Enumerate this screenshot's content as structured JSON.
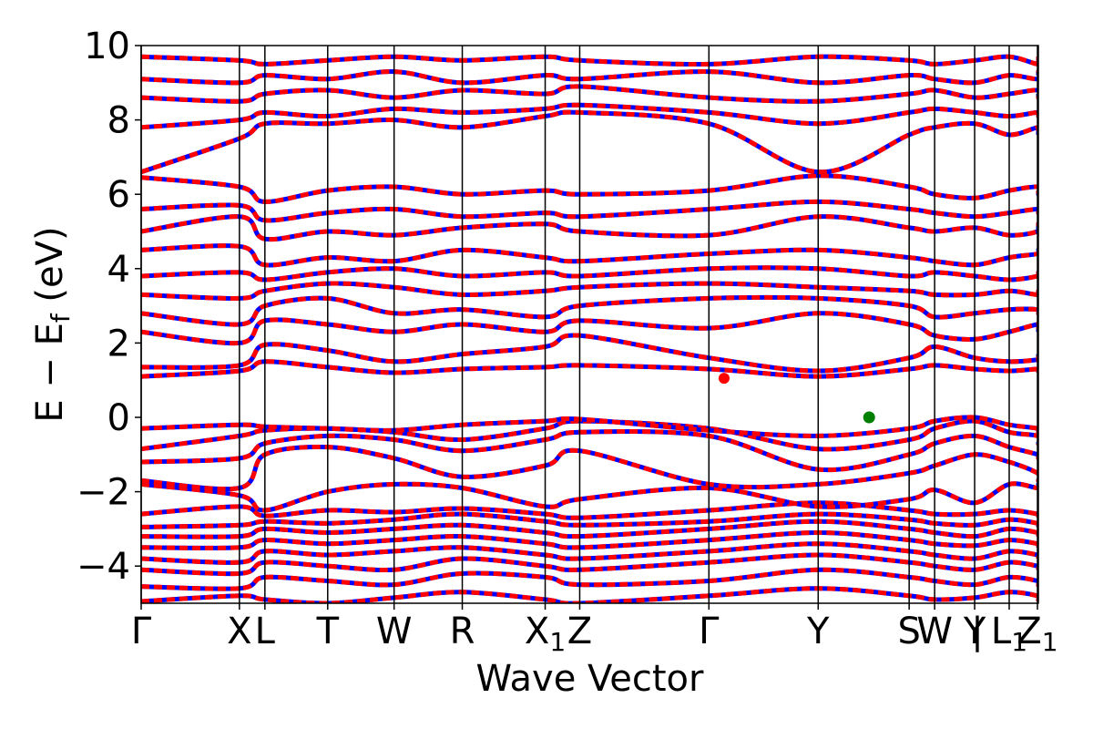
{
  "chart_data": {
    "type": "line",
    "title": "",
    "xlabel": "Wave Vector",
    "ylabel_parts": {
      "main": "E − E",
      "sub": "f",
      "unit": " (eV)"
    },
    "ylim": [
      -5,
      10
    ],
    "yticks": [
      {
        "value": -4,
        "label": "−4"
      },
      {
        "value": -2,
        "label": "−2"
      },
      {
        "value": 0,
        "label": "0"
      },
      {
        "value": 2,
        "label": "2"
      },
      {
        "value": 4,
        "label": "4"
      },
      {
        "value": 6,
        "label": "6"
      },
      {
        "value": 8,
        "label": "8"
      },
      {
        "value": 10,
        "label": "10"
      }
    ],
    "kpath_ticks": [
      {
        "pos": 0.0,
        "label": "Γ"
      },
      {
        "pos": 0.1095,
        "label": "X"
      },
      {
        "pos": 0.1379,
        "label": "L"
      },
      {
        "pos": 0.2079,
        "label": "T"
      },
      {
        "pos": 0.2819,
        "label": "W"
      },
      {
        "pos": 0.3579,
        "label": "R"
      },
      {
        "pos": 0.4503,
        "label": "X",
        "sub": "1"
      },
      {
        "pos": 0.4888,
        "label": "Z"
      },
      {
        "pos": 0.6328,
        "label": "Γ"
      },
      {
        "pos": 0.7546,
        "label": "Y"
      },
      {
        "pos": 0.856,
        "label": "S"
      },
      {
        "pos": 0.8844,
        "label": "W"
      },
      {
        "pos": 0.929,
        "label": "Y"
      },
      {
        "pos": 0.932,
        "label": "|"
      },
      {
        "pos": 0.9675,
        "label": "L",
        "sub": "1"
      },
      {
        "pos": 0.999,
        "label": "Z",
        "sub": "1"
      }
    ],
    "band_colors": {
      "primary": "#ff0000",
      "overlay": "#0000ff"
    },
    "cbm": {
      "k": 0.6497,
      "energy": 1.05,
      "color": "#ff0000"
    },
    "vbm": {
      "k": 0.8114,
      "energy": 0.0,
      "color": "#008000"
    },
    "series": [
      {
        "values": [
          -4.95,
          -4.8,
          -4.9,
          -5.0,
          -4.85,
          -4.7,
          -4.9,
          -5.0,
          -4.8,
          -4.6,
          -4.8,
          -4.9,
          -4.85,
          -4.7,
          -4.8,
          -4.9,
          -4.95
        ]
      },
      {
        "values": [
          -4.55,
          -4.6,
          -4.3,
          -4.4,
          -4.5,
          -4.2,
          -4.3,
          -4.5,
          -4.4,
          -4.1,
          -4.3,
          -4.4,
          -4.5,
          -4.3,
          -4.4,
          -4.5,
          -4.55
        ]
      },
      {
        "values": [
          -4.1,
          -4.2,
          -3.9,
          -4.0,
          -4.1,
          -3.8,
          -4.0,
          -4.1,
          -3.9,
          -3.7,
          -3.9,
          -4.0,
          -4.1,
          -3.9,
          -4.0,
          -4.05,
          -4.1
        ]
      },
      {
        "values": [
          -3.8,
          -3.9,
          -3.6,
          -3.7,
          -3.6,
          -3.5,
          -3.7,
          -3.8,
          -3.6,
          -3.4,
          -3.6,
          -3.7,
          -3.8,
          -3.6,
          -3.7,
          -3.75,
          -3.8
        ]
      },
      {
        "values": [
          -3.5,
          -3.5,
          -3.3,
          -3.4,
          -3.3,
          -3.2,
          -3.4,
          -3.5,
          -3.3,
          -3.1,
          -3.3,
          -3.4,
          -3.45,
          -3.3,
          -3.4,
          -3.45,
          -3.5
        ]
      },
      {
        "values": [
          -3.2,
          -3.2,
          -3.0,
          -3.1,
          -3.0,
          -2.9,
          -3.1,
          -3.2,
          -3.0,
          -2.8,
          -3.0,
          -3.1,
          -3.2,
          -3.0,
          -3.1,
          -3.15,
          -3.2
        ]
      },
      {
        "values": [
          -2.95,
          -2.9,
          -2.8,
          -2.85,
          -2.75,
          -2.6,
          -2.8,
          -2.9,
          -2.8,
          -2.6,
          -2.75,
          -2.85,
          -2.9,
          -2.75,
          -2.85,
          -2.9,
          -2.95
        ]
      },
      {
        "values": [
          -2.6,
          -2.4,
          -2.65,
          -2.5,
          -2.55,
          -2.45,
          -2.6,
          -2.7,
          -2.5,
          -2.3,
          -2.5,
          -2.6,
          -2.6,
          -2.5,
          -2.6,
          -2.65,
          -2.6
        ]
      },
      {
        "values": [
          -1.8,
          -2.1,
          -2.5,
          -2.0,
          -1.8,
          -1.9,
          -2.4,
          -2.2,
          -1.9,
          -2.4,
          -2.2,
          -1.95,
          -2.3,
          -1.8,
          -1.9,
          -1.8,
          -1.8
        ]
      },
      {
        "values": [
          -1.7,
          -1.9,
          -1.0,
          -0.8,
          -1.1,
          -1.6,
          -1.3,
          -0.9,
          -1.8,
          -1.8,
          -1.5,
          -1.3,
          -1.0,
          -1.2,
          -1.5,
          -1.7,
          -1.7
        ]
      },
      {
        "values": [
          -1.2,
          -1.1,
          -0.7,
          -0.5,
          -0.6,
          -0.9,
          -0.6,
          -0.4,
          -0.5,
          -1.4,
          -1.0,
          -0.7,
          -0.5,
          -0.8,
          -1.0,
          -1.1,
          -1.0
        ]
      },
      {
        "values": [
          -0.85,
          -0.5,
          -0.35,
          -0.3,
          -0.4,
          -0.6,
          -0.3,
          -0.1,
          -0.3,
          -0.85,
          -0.6,
          -0.3,
          -0.1,
          -0.4,
          -0.5,
          -0.7,
          -0.7
        ]
      },
      {
        "values": [
          -0.3,
          -0.2,
          -0.25,
          -0.3,
          -0.35,
          -0.2,
          -0.1,
          -0.05,
          -0.35,
          -0.5,
          -0.3,
          -0.1,
          0.0,
          -0.2,
          -0.3,
          -0.4,
          -0.35
        ]
      },
      {
        "values": [
          1.1,
          1.25,
          1.5,
          1.35,
          1.2,
          1.3,
          1.35,
          1.4,
          1.3,
          1.1,
          1.3,
          1.4,
          1.3,
          1.25,
          1.3,
          1.25,
          1.2
        ]
      },
      {
        "values": [
          1.35,
          1.4,
          1.95,
          1.8,
          1.5,
          1.7,
          1.9,
          2.2,
          1.6,
          1.25,
          1.6,
          1.9,
          1.6,
          1.5,
          1.55,
          1.6,
          1.7
        ]
      },
      {
        "values": [
          2.3,
          2.0,
          2.6,
          2.5,
          2.3,
          2.5,
          2.3,
          2.6,
          2.4,
          2.8,
          2.5,
          2.2,
          2.1,
          2.3,
          2.5,
          2.4,
          2.3
        ]
      },
      {
        "values": [
          2.8,
          2.5,
          3.0,
          3.2,
          2.8,
          2.9,
          2.7,
          3.0,
          3.2,
          3.2,
          3.0,
          2.7,
          2.8,
          2.9,
          2.9,
          2.8,
          2.8
        ]
      },
      {
        "values": [
          3.3,
          3.2,
          3.4,
          3.6,
          3.5,
          3.3,
          3.4,
          3.5,
          3.6,
          3.5,
          3.4,
          3.3,
          3.3,
          3.4,
          3.3,
          3.4,
          3.3
        ]
      },
      {
        "values": [
          3.8,
          3.9,
          3.7,
          3.9,
          4.0,
          3.8,
          3.9,
          3.8,
          4.0,
          4.0,
          3.8,
          3.9,
          3.8,
          3.7,
          3.8,
          3.9,
          3.8
        ]
      },
      {
        "values": [
          4.5,
          4.6,
          4.1,
          4.3,
          4.2,
          4.5,
          4.3,
          4.2,
          4.4,
          4.5,
          4.3,
          4.2,
          4.1,
          4.3,
          4.4,
          4.5,
          4.5
        ]
      },
      {
        "values": [
          5.0,
          5.4,
          4.8,
          5.0,
          4.9,
          5.1,
          5.2,
          5.0,
          4.9,
          5.4,
          5.1,
          5.0,
          5.1,
          4.9,
          5.0,
          5.2,
          5.0
        ]
      },
      {
        "values": [
          5.6,
          5.7,
          5.3,
          5.5,
          5.6,
          5.4,
          5.5,
          5.4,
          5.6,
          5.8,
          5.6,
          5.5,
          5.4,
          5.5,
          5.6,
          5.5,
          5.6
        ]
      },
      {
        "values": [
          6.45,
          6.2,
          5.8,
          6.1,
          6.2,
          6.0,
          6.1,
          6.0,
          6.1,
          6.5,
          6.2,
          6.0,
          5.9,
          6.1,
          6.2,
          6.0,
          6.1
        ]
      },
      {
        "values": [
          6.6,
          7.5,
          7.9,
          7.9,
          8.0,
          7.8,
          8.1,
          8.2,
          7.9,
          6.6,
          7.6,
          7.8,
          7.9,
          7.6,
          7.8,
          7.7,
          7.6
        ]
      },
      {
        "values": [
          7.8,
          8.0,
          8.2,
          8.1,
          8.3,
          8.2,
          8.3,
          8.4,
          8.2,
          7.9,
          8.2,
          8.3,
          8.2,
          8.1,
          8.2,
          8.1,
          8.2
        ]
      },
      {
        "values": [
          8.6,
          8.5,
          8.7,
          8.8,
          8.6,
          8.8,
          8.7,
          8.9,
          8.6,
          8.5,
          8.7,
          8.8,
          8.6,
          8.7,
          8.8,
          8.6,
          8.7
        ]
      },
      {
        "values": [
          9.1,
          9.0,
          9.2,
          9.1,
          9.3,
          9.0,
          9.2,
          9.1,
          9.3,
          9.0,
          9.2,
          9.1,
          9.0,
          9.2,
          9.1,
          9.3,
          9.2
        ]
      },
      {
        "values": [
          9.7,
          9.6,
          9.5,
          9.6,
          9.7,
          9.6,
          9.7,
          9.6,
          9.5,
          9.7,
          9.6,
          9.5,
          9.6,
          9.7,
          9.5,
          9.6,
          9.7
        ]
      }
    ]
  }
}
